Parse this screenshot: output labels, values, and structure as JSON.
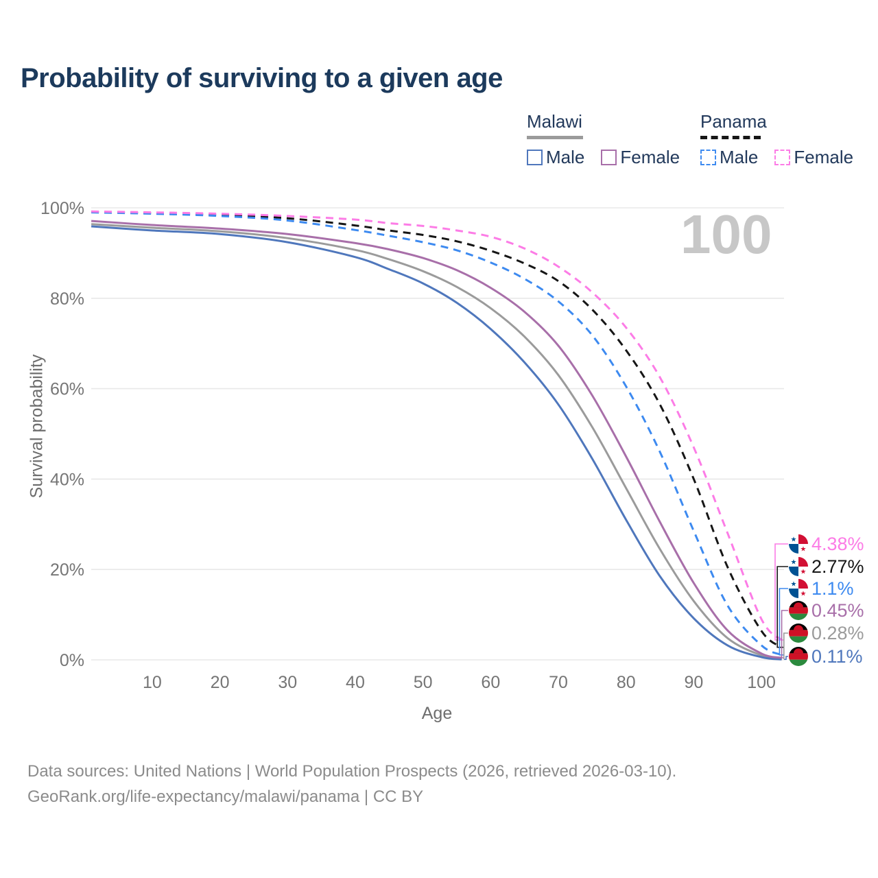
{
  "page": {
    "title": "Probability of surviving to a given age"
  },
  "legend": {
    "groups": [
      {
        "country": "Malawi",
        "line_style": "solid",
        "underline_color": "#9b9b9b",
        "items": [
          {
            "label": "Male",
            "color": "#4f77bc"
          },
          {
            "label": "Female",
            "color": "#a86fa9"
          }
        ]
      },
      {
        "country": "Panama",
        "line_style": "dashed",
        "underline_color": "#161616",
        "items": [
          {
            "label": "Male",
            "color": "#3d8af0"
          },
          {
            "label": "Female",
            "color": "#fc7ce6"
          }
        ]
      }
    ]
  },
  "watermark": "100",
  "chart_data": {
    "type": "line",
    "title": "Probability of surviving to a given age",
    "xlabel": "Age",
    "ylabel": "Survival probability",
    "xlim": [
      0,
      104
    ],
    "ylim": [
      0,
      100
    ],
    "grid": "horizontal",
    "legend_position": "top-right",
    "x_ticks": [
      10,
      20,
      30,
      40,
      50,
      60,
      70,
      80,
      90,
      100
    ],
    "y_ticks": [
      0,
      20,
      40,
      60,
      80,
      100
    ],
    "y_tick_labels": [
      "0%",
      "20%",
      "40%",
      "60%",
      "80%",
      "100%"
    ],
    "ages": [
      1,
      10,
      20,
      30,
      40,
      45,
      50,
      55,
      60,
      65,
      70,
      75,
      80,
      85,
      90,
      95,
      100,
      103
    ],
    "series": [
      {
        "name": "Malawi Total",
        "country": "Malawi",
        "sex": "total",
        "color": "#9b9b9b",
        "dash": false,
        "values": [
          96.4,
          95.6,
          94.8,
          93.3,
          90.7,
          88.6,
          86.0,
          82.5,
          77.8,
          71.5,
          63.0,
          51.5,
          38.0,
          24.5,
          13.0,
          4.8,
          1.0,
          0.28
        ]
      },
      {
        "name": "Malawi Male",
        "country": "Malawi",
        "sex": "male",
        "color": "#4f77bc",
        "dash": false,
        "values": [
          95.9,
          95.0,
          94.2,
          92.4,
          89.1,
          86.4,
          83.3,
          79.0,
          73.2,
          65.8,
          56.5,
          44.5,
          31.0,
          18.5,
          9.2,
          3.2,
          0.6,
          0.11
        ]
      },
      {
        "name": "Malawi Female",
        "country": "Malawi",
        "sex": "female",
        "color": "#a86fa9",
        "dash": false,
        "values": [
          97.1,
          96.2,
          95.4,
          94.2,
          92.2,
          90.8,
          88.9,
          86.2,
          82.3,
          77.0,
          69.5,
          58.5,
          45.0,
          30.5,
          17.0,
          6.5,
          1.4,
          0.45
        ]
      },
      {
        "name": "Panama Total",
        "country": "Panama",
        "sex": "total",
        "color": "#161616",
        "dash": true,
        "values": [
          99.1,
          98.8,
          98.4,
          97.7,
          96.1,
          95.0,
          94.0,
          92.6,
          90.5,
          87.7,
          83.8,
          77.5,
          68.5,
          56.5,
          40.0,
          20.5,
          6.4,
          2.77
        ]
      },
      {
        "name": "Panama Male",
        "country": "Panama",
        "sex": "male",
        "color": "#3d8af0",
        "dash": true,
        "values": [
          99.0,
          98.7,
          98.2,
          97.2,
          95.1,
          93.8,
          92.4,
          90.6,
          87.9,
          84.3,
          79.3,
          71.8,
          60.5,
          46.0,
          28.5,
          12.0,
          3.2,
          1.1
        ]
      },
      {
        "name": "Panama Female",
        "country": "Panama",
        "sex": "female",
        "color": "#fc7ce6",
        "dash": true,
        "values": [
          99.2,
          99.0,
          98.7,
          98.2,
          97.4,
          96.6,
          96.0,
          95.0,
          93.6,
          91.0,
          87.0,
          81.3,
          73.5,
          62.5,
          47.0,
          28.0,
          9.0,
          4.4
        ]
      }
    ],
    "end_labels": [
      {
        "value": "4.38%",
        "series": "Panama Female",
        "flag": "panama"
      },
      {
        "value": "2.77%",
        "series": "Panama Total",
        "flag": "panama"
      },
      {
        "value": "1.1%",
        "series": "Panama Male",
        "flag": "panama"
      },
      {
        "value": "0.45%",
        "series": "Malawi Female",
        "flag": "malawi"
      },
      {
        "value": "0.28%",
        "series": "Malawi Total",
        "flag": "malawi"
      },
      {
        "value": "0.11%",
        "series": "Malawi Male",
        "flag": "malawi"
      }
    ],
    "hover_age": "100"
  },
  "footer": {
    "line1": "Data sources: United Nations | World Population Prospects (2026, retrieved 2026-03-10).",
    "line2": "GeoRank.org/life-expectancy/malawi/panama | CC BY"
  }
}
